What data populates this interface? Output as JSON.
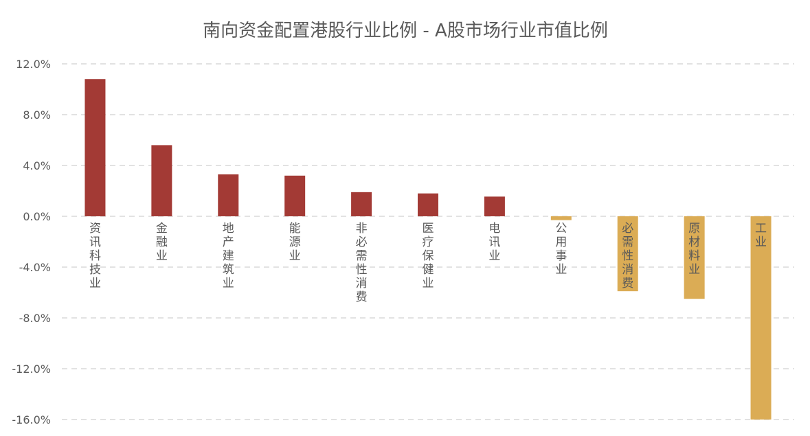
{
  "chart_data": {
    "type": "bar",
    "title": "南向资金配置港股行业比例 - A股市场行业市值比例",
    "xlabel": "",
    "ylabel": "",
    "ylim": [
      -16.0,
      12.0
    ],
    "yticks": [
      "12.0%",
      "8.0%",
      "4.0%",
      "0.0%",
      "-4.0%",
      "-8.0%",
      "-12.0%",
      "-16.0%"
    ],
    "ytick_values": [
      12,
      8,
      4,
      0,
      -4,
      -8,
      -12,
      -16
    ],
    "grid": true,
    "legend": "none",
    "categories": [
      "资讯科技业",
      "金融业",
      "地产建筑业",
      "能源业",
      "非必需性消费",
      "医疗保健业",
      "电讯业",
      "公用事业",
      "必需性消费",
      "原材料业",
      "工业"
    ],
    "values": [
      10.8,
      5.6,
      3.3,
      3.2,
      1.9,
      1.8,
      1.55,
      -0.3,
      -5.9,
      -6.5,
      -16.0
    ],
    "colors": {
      "positive": "#a33a35",
      "negative": "#dbac55"
    }
  }
}
